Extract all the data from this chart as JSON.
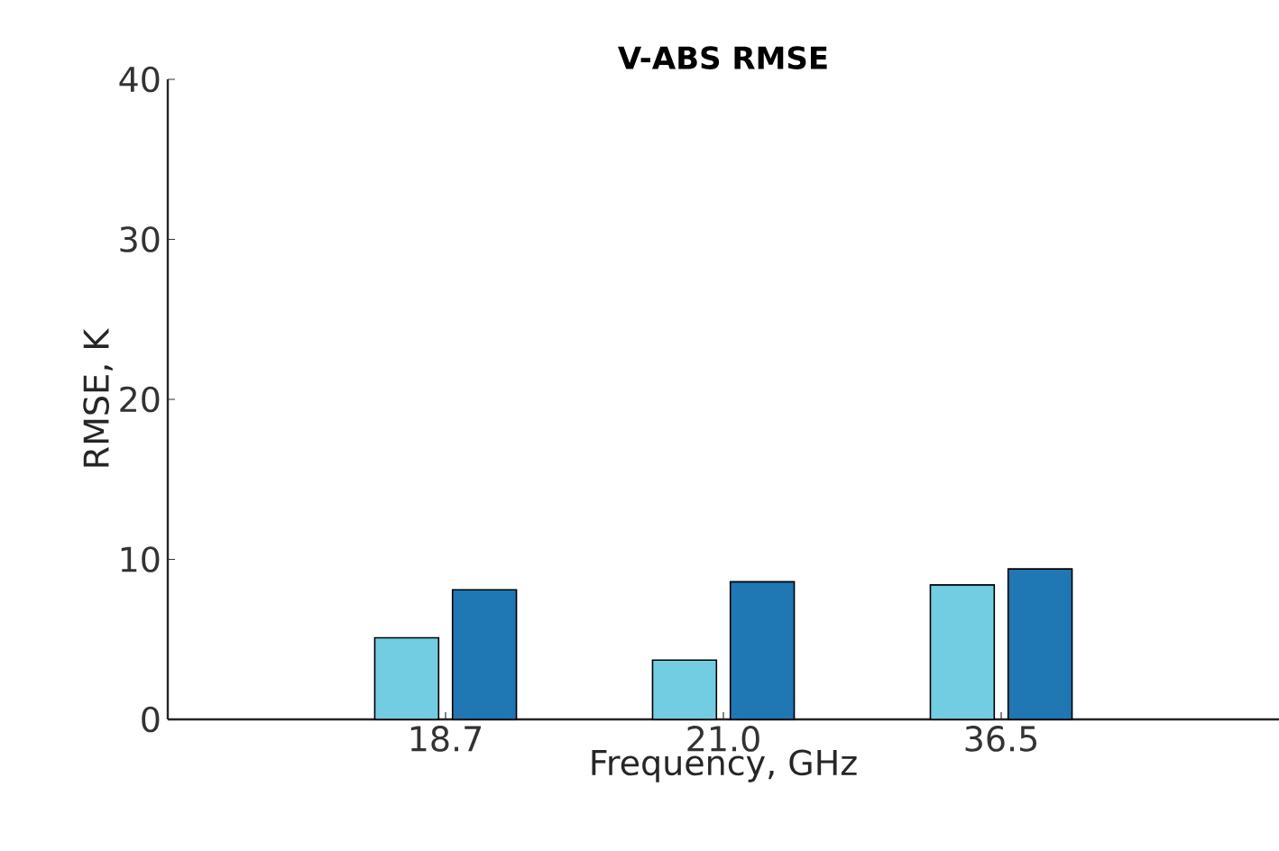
{
  "chart_data": {
    "type": "bar",
    "title": "V-ABS RMSE",
    "xlabel": "Frequency, GHz",
    "ylabel": "RMSE, K",
    "categories": [
      "18.7",
      "21.0",
      "36.5"
    ],
    "series": [
      {
        "color": "#72cde2",
        "values": [
          5.1,
          3.7,
          8.4
        ]
      },
      {
        "color": "#1f77b4",
        "values": [
          8.1,
          8.6,
          9.4
        ]
      }
    ],
    "ylim": [
      0,
      40
    ],
    "yticks": [
      0,
      10,
      20,
      30,
      40
    ],
    "grid": false
  }
}
